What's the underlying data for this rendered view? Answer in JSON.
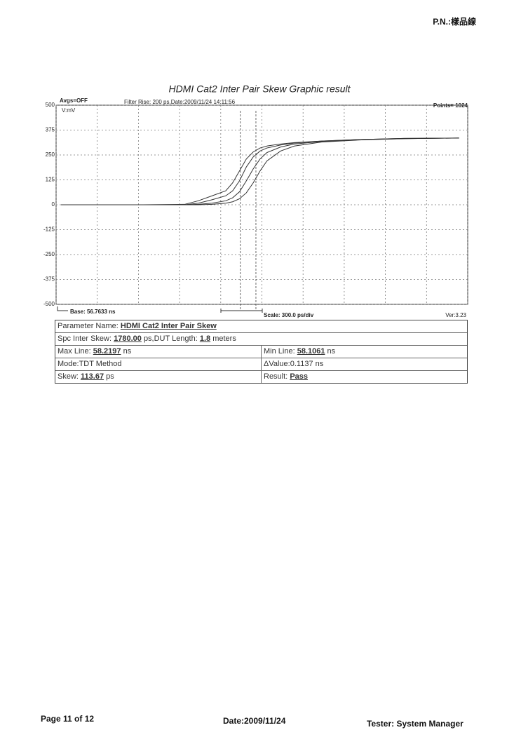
{
  "header": {
    "pn": "P.N.:樣品線"
  },
  "chart_data": {
    "type": "line",
    "title": "HDMI Cat2 Inter Pair Skew Graphic result",
    "annotations": {
      "avgs": "Avgs=OFF",
      "filter": "Filter Rise: 200 ps,Date:2009/11/24 14:11:56",
      "points": "Points= 1024",
      "unit": "V:mV",
      "base": "Base: 56.7633 ns",
      "scale": "Scale: 300.0 ps/div",
      "version": "Ver:3.23"
    },
    "x": [
      56.8,
      57.1,
      57.4,
      57.7,
      57.8,
      57.9,
      58.0,
      58.05,
      58.1,
      58.15,
      58.2,
      58.25,
      58.3,
      58.4,
      58.5,
      58.7,
      59.0,
      59.3,
      59.7
    ],
    "series": [
      {
        "color": "#333333",
        "values": [
          0,
          0,
          0,
          2,
          20,
          45,
          70,
          110,
          170,
          230,
          265,
          285,
          295,
          305,
          312,
          320,
          328,
          333,
          335
        ]
      },
      {
        "color": "#333333",
        "values": [
          0,
          0,
          0,
          0,
          8,
          25,
          45,
          70,
          120,
          190,
          240,
          270,
          285,
          300,
          310,
          320,
          328,
          333,
          335
        ]
      },
      {
        "color": "#333333",
        "values": [
          0,
          0,
          0,
          0,
          2,
          8,
          20,
          35,
          65,
          120,
          180,
          230,
          262,
          290,
          305,
          318,
          327,
          332,
          335
        ]
      },
      {
        "color": "#333333",
        "values": [
          0,
          0,
          0,
          0,
          0,
          2,
          8,
          15,
          30,
          60,
          110,
          170,
          220,
          270,
          295,
          315,
          326,
          332,
          335
        ]
      }
    ],
    "xlim": [
      56.7633,
      59.7633
    ],
    "xticks": [
      56.7633,
      57.0633,
      57.3633,
      57.6633,
      57.9633,
      58.2633,
      58.5633,
      58.8633,
      59.1633,
      59.4633,
      59.7633
    ],
    "ylim": [
      -500,
      500
    ],
    "yticks": [
      500,
      375,
      250,
      125,
      0,
      -125,
      -250,
      -375,
      -500
    ],
    "grid": true
  },
  "table": {
    "parameter_name": {
      "label": "Parameter Name:",
      "value": "HDMI Cat2 Inter Pair Skew"
    },
    "spc_inter_skew": {
      "label": "Spc Inter Skew:",
      "value": "1780.00",
      "unit": "ps,DUT Length:",
      "length": "1.8",
      "length_unit": "meters"
    },
    "max_line": {
      "label": "Max Line:",
      "value": "58.2197",
      "unit": "ns"
    },
    "min_line": {
      "label": "Min Line:",
      "value": "58.1061",
      "unit": "ns"
    },
    "mode": "Mode:TDT Method",
    "delta_value": "ΔValue:0.1137 ns",
    "skew": {
      "label": "Skew:",
      "value": "113.67",
      "unit": "ps"
    },
    "result": {
      "label": "Result:",
      "value": "Pass"
    }
  },
  "footer": {
    "page": "Page 11 of 12",
    "date": "Date:2009/11/24",
    "tester": "Tester: System Manager"
  }
}
